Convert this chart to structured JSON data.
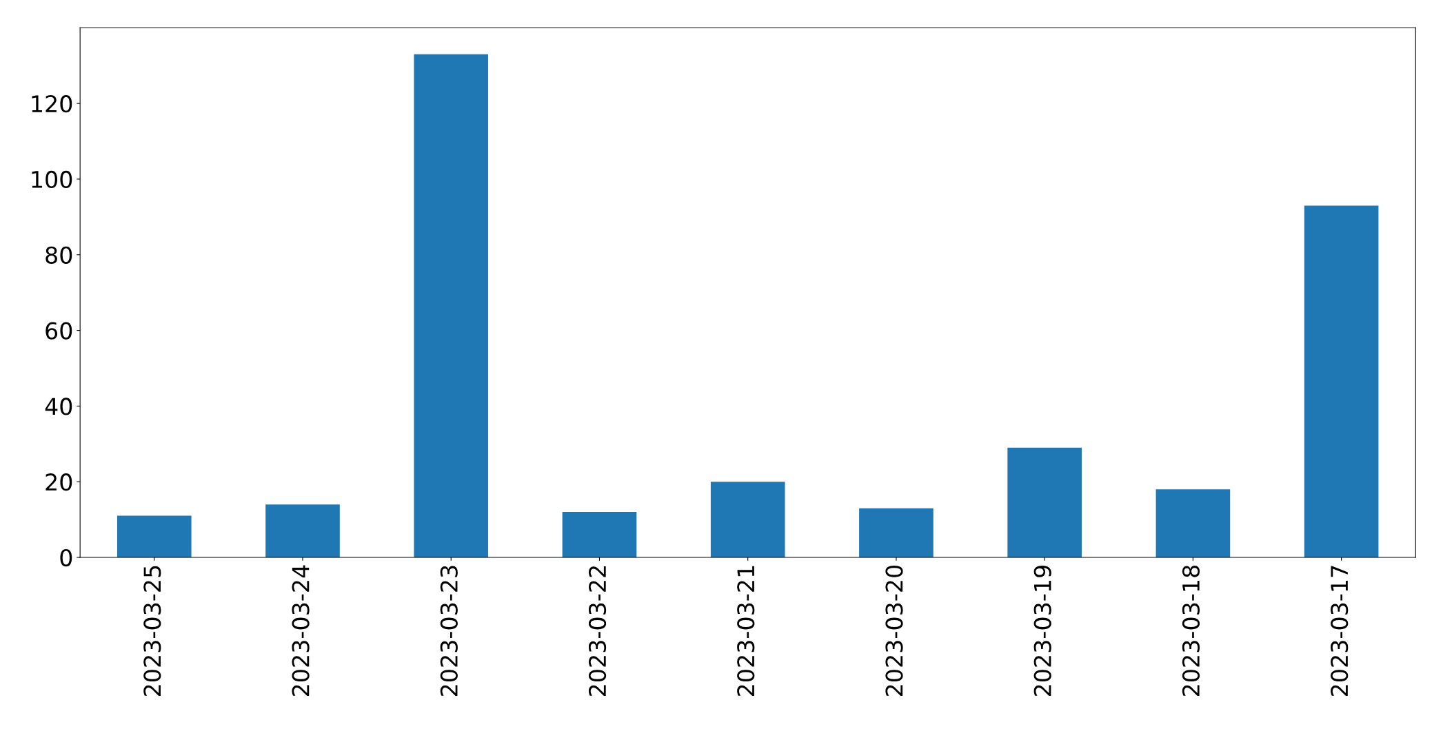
{
  "chart_data": {
    "type": "bar",
    "categories": [
      "2023-03-25",
      "2023-03-24",
      "2023-03-23",
      "2023-03-22",
      "2023-03-21",
      "2023-03-20",
      "2023-03-19",
      "2023-03-18",
      "2023-03-17"
    ],
    "values": [
      11,
      14,
      133,
      12,
      20,
      13,
      29,
      18,
      93
    ],
    "color": "#1f77b4",
    "ylim": [
      0,
      140
    ],
    "yticks": [
      0,
      20,
      40,
      60,
      80,
      100,
      120
    ],
    "grid": false
  }
}
